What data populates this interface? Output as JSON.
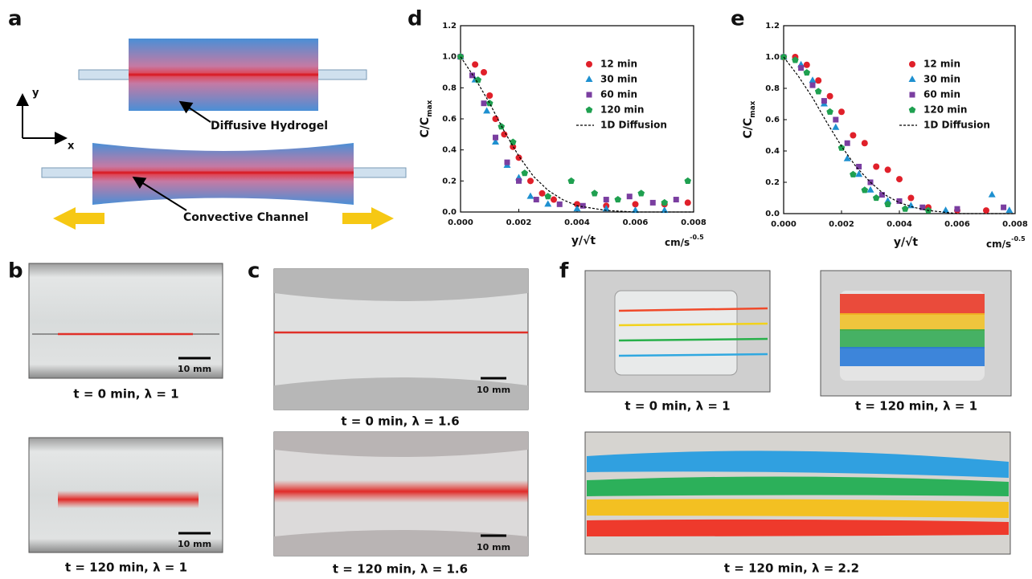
{
  "panels": {
    "a": {
      "label": "a",
      "axis_y": "y",
      "axis_x": "x",
      "hydrogel": "Diffusive Hydrogel",
      "channel": "Convective Channel"
    },
    "b": {
      "label": "b",
      "caption_top": "t = 0 min, λ = 1",
      "caption_bottom": "t = 120 min, λ = 1",
      "scale_top": "10 mm",
      "scale_bottom": "10 mm"
    },
    "c": {
      "label": "c",
      "caption_top": "t = 0 min, λ = 1.6",
      "caption_bottom": "t = 120 min, λ = 1.6",
      "scale_top": "10 mm",
      "scale_bottom": "10 mm"
    },
    "f": {
      "label": "f",
      "caption_left": "t = 0 min, λ = 1",
      "caption_right": "t = 120 min, λ = 1",
      "caption_bottom": "t = 120 min, λ = 2.2"
    }
  },
  "chart_data": [
    {
      "type": "scatter",
      "panel_label": "d",
      "xlabel": "y/√t",
      "xunit": "cm/s",
      "xunit_sup": "-0.5",
      "ylabel": "C/C",
      "ylabel_sub": "max",
      "xlim": [
        0,
        0.008
      ],
      "ylim": [
        0,
        1.2
      ],
      "xticks": [
        {
          "value": 0,
          "label": "0.000"
        },
        {
          "value": 0.002,
          "label": "0.002"
        },
        {
          "value": 0.004,
          "label": "0.004"
        },
        {
          "value": 0.006,
          "label": "0.006"
        },
        {
          "value": 0.008,
          "label": "0.008"
        }
      ],
      "yticks": [
        {
          "value": 0,
          "label": "0.0"
        },
        0.2,
        0.4,
        0.6,
        0.8,
        {
          "value": 1,
          "label": "1.0"
        },
        1.2
      ],
      "legend": "upper right",
      "series": [
        {
          "name": "12 min",
          "color": "#e0202a",
          "marker": "circle",
          "x": [
            0,
            0.0005,
            0.0008,
            0.001,
            0.0012,
            0.0015,
            0.0018,
            0.002,
            0.0024,
            0.0028,
            0.0032,
            0.004,
            0.005,
            0.006,
            0.007,
            0.0078
          ],
          "values": [
            1.0,
            0.95,
            0.9,
            0.75,
            0.6,
            0.5,
            0.42,
            0.35,
            0.2,
            0.12,
            0.08,
            0.05,
            0.04,
            0.05,
            0.05,
            0.06
          ]
        },
        {
          "name": "30 min",
          "color": "#1e90d0",
          "marker": "triangle",
          "x": [
            0,
            0.0005,
            0.0009,
            0.0012,
            0.0016,
            0.002,
            0.0024,
            0.003,
            0.004,
            0.005,
            0.006,
            0.007
          ],
          "values": [
            1.0,
            0.85,
            0.65,
            0.45,
            0.3,
            0.22,
            0.1,
            0.05,
            0.02,
            0.02,
            0.01,
            0.01
          ]
        },
        {
          "name": "60 min",
          "color": "#7a3ea0",
          "marker": "square",
          "x": [
            0,
            0.0004,
            0.0008,
            0.0012,
            0.0016,
            0.002,
            0.0026,
            0.0034,
            0.0042,
            0.005,
            0.0058,
            0.0066,
            0.0074
          ],
          "values": [
            1.0,
            0.88,
            0.7,
            0.48,
            0.32,
            0.2,
            0.08,
            0.05,
            0.04,
            0.08,
            0.1,
            0.06,
            0.08
          ]
        },
        {
          "name": "120 min",
          "color": "#1fa050",
          "marker": "pentagon",
          "x": [
            0,
            0.0006,
            0.001,
            0.0014,
            0.0018,
            0.0022,
            0.003,
            0.0038,
            0.0046,
            0.0054,
            0.0062,
            0.007,
            0.0078
          ],
          "values": [
            1.0,
            0.85,
            0.7,
            0.55,
            0.45,
            0.25,
            0.1,
            0.2,
            0.12,
            0.08,
            0.12,
            0.06,
            0.2
          ]
        },
        {
          "name": "1D Diffusion",
          "color": "#000000",
          "marker": "dashed",
          "x": [
            0,
            0.0005,
            0.001,
            0.0015,
            0.002,
            0.0025,
            0.003,
            0.0035,
            0.004,
            0.005,
            0.006,
            0.008
          ],
          "values": [
            1.0,
            0.86,
            0.7,
            0.52,
            0.36,
            0.23,
            0.14,
            0.08,
            0.04,
            0.01,
            0,
            0
          ]
        }
      ]
    },
    {
      "type": "scatter",
      "panel_label": "e",
      "xlabel": "y/√t",
      "xunit": "cm/s",
      "xunit_sup": "-0.5",
      "ylabel": "C/C",
      "ylabel_sub": "max",
      "xlim": [
        0,
        0.008
      ],
      "ylim": [
        0,
        1.2
      ],
      "xticks": [
        {
          "value": 0,
          "label": "0.000"
        },
        {
          "value": 0.002,
          "label": "0.002"
        },
        {
          "value": 0.004,
          "label": "0.004"
        },
        {
          "value": 0.006,
          "label": "0.006"
        },
        {
          "value": 0.008,
          "label": "0.008"
        }
      ],
      "yticks": [
        {
          "value": 0,
          "label": "0.0"
        },
        0.2,
        0.4,
        0.6,
        0.8,
        {
          "value": 1,
          "label": "1.0"
        },
        1.2
      ],
      "legend": "upper right",
      "series": [
        {
          "name": "12 min",
          "color": "#e0202a",
          "marker": "circle",
          "x": [
            0,
            0.0004,
            0.0008,
            0.0012,
            0.0016,
            0.002,
            0.0024,
            0.0028,
            0.0032,
            0.0036,
            0.004,
            0.0044,
            0.005,
            0.006,
            0.007
          ],
          "values": [
            1.0,
            1.0,
            0.95,
            0.85,
            0.75,
            0.65,
            0.5,
            0.45,
            0.3,
            0.28,
            0.22,
            0.1,
            0.04,
            0.02,
            0.02
          ]
        },
        {
          "name": "30 min",
          "color": "#1e90d0",
          "marker": "triangle",
          "x": [
            0,
            0.0006,
            0.001,
            0.0014,
            0.0018,
            0.0022,
            0.0026,
            0.003,
            0.0036,
            0.0044,
            0.0056,
            0.0072,
            0.0078
          ],
          "values": [
            1.0,
            0.95,
            0.85,
            0.7,
            0.55,
            0.35,
            0.25,
            0.15,
            0.08,
            0.05,
            0.02,
            0.12,
            0.02
          ]
        },
        {
          "name": "60 min",
          "color": "#7a3ea0",
          "marker": "square",
          "x": [
            0,
            0.0006,
            0.001,
            0.0014,
            0.0018,
            0.0022,
            0.0026,
            0.003,
            0.0034,
            0.004,
            0.0048,
            0.006,
            0.0076
          ],
          "values": [
            1.0,
            0.93,
            0.82,
            0.72,
            0.6,
            0.45,
            0.3,
            0.2,
            0.12,
            0.08,
            0.04,
            0.03,
            0.04
          ]
        },
        {
          "name": "120 min",
          "color": "#1fa050",
          "marker": "pentagon",
          "x": [
            0,
            0.0004,
            0.0008,
            0.0012,
            0.0016,
            0.002,
            0.0024,
            0.0028,
            0.0032,
            0.0036,
            0.0042,
            0.005
          ],
          "values": [
            1.0,
            0.98,
            0.9,
            0.78,
            0.65,
            0.42,
            0.25,
            0.15,
            0.1,
            0.06,
            0.03,
            0.02
          ]
        },
        {
          "name": "1D Diffusion",
          "color": "#000000",
          "marker": "dashed",
          "x": [
            0,
            0.0005,
            0.001,
            0.0015,
            0.002,
            0.0025,
            0.003,
            0.0035,
            0.004,
            0.0045,
            0.005,
            0.006,
            0.008
          ],
          "values": [
            1.0,
            0.88,
            0.74,
            0.58,
            0.43,
            0.3,
            0.2,
            0.12,
            0.07,
            0.04,
            0.02,
            0,
            0
          ]
        }
      ]
    }
  ]
}
